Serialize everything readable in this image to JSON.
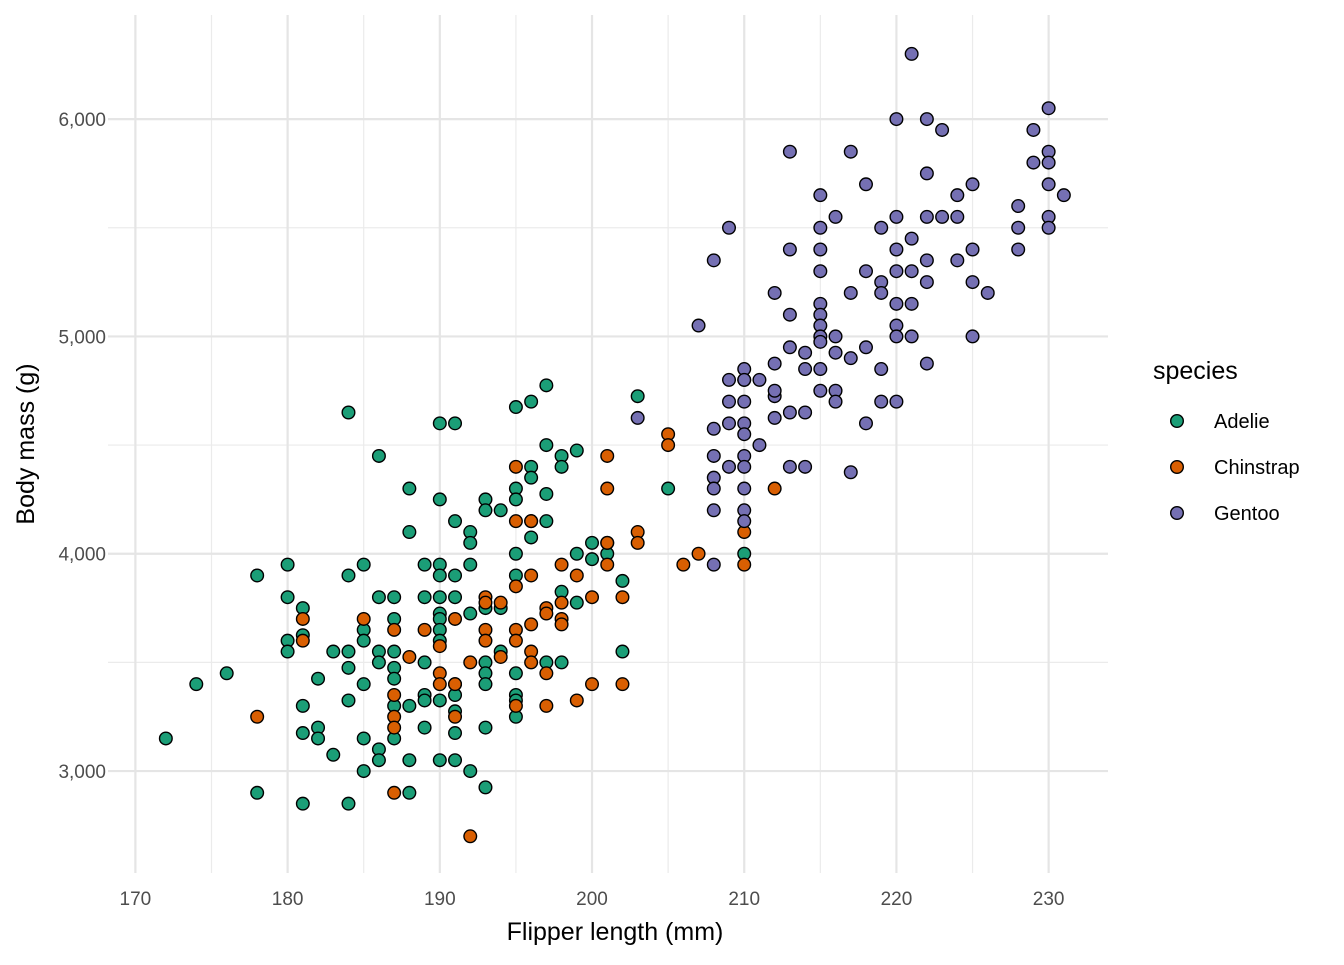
{
  "chart_data": {
    "type": "scatter",
    "title": "",
    "xlabel": "Flipper length (mm)",
    "ylabel": "Body mass (g)",
    "xlim": [
      168.2,
      233.9
    ],
    "ylim": [
      2531,
      6479
    ],
    "xticks": [
      170,
      180,
      190,
      200,
      210,
      220,
      230
    ],
    "xtick_labels": [
      "170",
      "180",
      "190",
      "200",
      "210",
      "220",
      "230"
    ],
    "yticks": [
      3000,
      4000,
      5000,
      6000
    ],
    "ytick_labels": [
      "3,000",
      "4,000",
      "5,000",
      "6,000"
    ],
    "grid": true,
    "legend": {
      "title": "species",
      "placement": "right"
    },
    "series": [
      {
        "name": "Adelie",
        "color": "#1B9E77",
        "points": [
          [
            172,
            3150
          ],
          [
            174,
            3400
          ],
          [
            176,
            3450
          ],
          [
            178,
            3900
          ],
          [
            178,
            2900
          ],
          [
            180,
            3950
          ],
          [
            180,
            3800
          ],
          [
            180,
            3600
          ],
          [
            180,
            3550
          ],
          [
            181,
            3750
          ],
          [
            181,
            3625
          ],
          [
            181,
            3300
          ],
          [
            181,
            3175
          ],
          [
            181,
            2850
          ],
          [
            182,
            3425
          ],
          [
            182,
            3200
          ],
          [
            182,
            3150
          ],
          [
            183,
            3550
          ],
          [
            183,
            3075
          ],
          [
            184,
            4650
          ],
          [
            184,
            3900
          ],
          [
            184,
            3550
          ],
          [
            184,
            3475
          ],
          [
            184,
            3325
          ],
          [
            184,
            2850
          ],
          [
            185,
            3950
          ],
          [
            185,
            3650
          ],
          [
            185,
            3600
          ],
          [
            185,
            3400
          ],
          [
            185,
            3150
          ],
          [
            185,
            3000
          ],
          [
            186,
            4450
          ],
          [
            186,
            3800
          ],
          [
            186,
            3550
          ],
          [
            186,
            3500
          ],
          [
            186,
            3100
          ],
          [
            186,
            3050
          ],
          [
            187,
            3800
          ],
          [
            187,
            3700
          ],
          [
            187,
            3550
          ],
          [
            187,
            3475
          ],
          [
            187,
            3425
          ],
          [
            187,
            3300
          ],
          [
            187,
            3150
          ],
          [
            188,
            4300
          ],
          [
            188,
            4100
          ],
          [
            188,
            3300
          ],
          [
            188,
            3050
          ],
          [
            188,
            2900
          ],
          [
            189,
            3950
          ],
          [
            189,
            3800
          ],
          [
            189,
            3500
          ],
          [
            189,
            3350
          ],
          [
            189,
            3325
          ],
          [
            189,
            3200
          ],
          [
            190,
            4600
          ],
          [
            190,
            4250
          ],
          [
            190,
            3950
          ],
          [
            190,
            3900
          ],
          [
            190,
            3800
          ],
          [
            190,
            3725
          ],
          [
            190,
            3700
          ],
          [
            190,
            3650
          ],
          [
            190,
            3600
          ],
          [
            190,
            3325
          ],
          [
            190,
            3050
          ],
          [
            191,
            4600
          ],
          [
            191,
            4150
          ],
          [
            191,
            3900
          ],
          [
            191,
            3800
          ],
          [
            191,
            3400
          ],
          [
            191,
            3350
          ],
          [
            191,
            3275
          ],
          [
            191,
            3175
          ],
          [
            191,
            3050
          ],
          [
            192,
            4100
          ],
          [
            192,
            4050
          ],
          [
            192,
            3950
          ],
          [
            192,
            3725
          ],
          [
            192,
            3000
          ],
          [
            193,
            4250
          ],
          [
            193,
            4200
          ],
          [
            193,
            3750
          ],
          [
            193,
            3500
          ],
          [
            193,
            3450
          ],
          [
            193,
            3400
          ],
          [
            193,
            3200
          ],
          [
            193,
            2925
          ],
          [
            194,
            4200
          ],
          [
            194,
            3750
          ],
          [
            194,
            3550
          ],
          [
            195,
            4675
          ],
          [
            195,
            4300
          ],
          [
            195,
            4250
          ],
          [
            195,
            4000
          ],
          [
            195,
            3900
          ],
          [
            195,
            3450
          ],
          [
            195,
            3350
          ],
          [
            195,
            3325
          ],
          [
            195,
            3250
          ],
          [
            196,
            4700
          ],
          [
            196,
            4400
          ],
          [
            196,
            4350
          ],
          [
            196,
            4150
          ],
          [
            196,
            4075
          ],
          [
            197,
            4775
          ],
          [
            197,
            4500
          ],
          [
            197,
            4275
          ],
          [
            197,
            4150
          ],
          [
            197,
            3500
          ],
          [
            198,
            4450
          ],
          [
            198,
            4400
          ],
          [
            198,
            3825
          ],
          [
            198,
            3500
          ],
          [
            199,
            4475
          ],
          [
            199,
            4000
          ],
          [
            199,
            3775
          ],
          [
            200,
            4050
          ],
          [
            200,
            3975
          ],
          [
            201,
            4000
          ],
          [
            201,
            4050
          ],
          [
            202,
            3875
          ],
          [
            202,
            3550
          ],
          [
            203,
            4725
          ],
          [
            205,
            4300
          ],
          [
            210,
            4000
          ]
        ]
      },
      {
        "name": "Chinstrap",
        "color": "#D95F02",
        "points": [
          [
            178,
            3250
          ],
          [
            181,
            3700
          ],
          [
            181,
            3600
          ],
          [
            185,
            3700
          ],
          [
            187,
            3650
          ],
          [
            187,
            3350
          ],
          [
            187,
            3250
          ],
          [
            187,
            3200
          ],
          [
            187,
            2900
          ],
          [
            188,
            3525
          ],
          [
            189,
            3650
          ],
          [
            190,
            3575
          ],
          [
            190,
            3450
          ],
          [
            190,
            3400
          ],
          [
            191,
            3700
          ],
          [
            191,
            3400
          ],
          [
            191,
            3250
          ],
          [
            192,
            3500
          ],
          [
            192,
            2700
          ],
          [
            193,
            3800
          ],
          [
            193,
            3775
          ],
          [
            193,
            3650
          ],
          [
            193,
            3600
          ],
          [
            194,
            3775
          ],
          [
            194,
            3525
          ],
          [
            195,
            4400
          ],
          [
            195,
            4150
          ],
          [
            195,
            3850
          ],
          [
            195,
            3650
          ],
          [
            195,
            3600
          ],
          [
            195,
            3300
          ],
          [
            196,
            4150
          ],
          [
            196,
            3900
          ],
          [
            196,
            3675
          ],
          [
            196,
            3550
          ],
          [
            196,
            3500
          ],
          [
            197,
            3750
          ],
          [
            197,
            3725
          ],
          [
            197,
            3450
          ],
          [
            197,
            3300
          ],
          [
            198,
            3950
          ],
          [
            198,
            3775
          ],
          [
            198,
            3700
          ],
          [
            198,
            3675
          ],
          [
            199,
            3900
          ],
          [
            199,
            3325
          ],
          [
            200,
            3800
          ],
          [
            200,
            3400
          ],
          [
            201,
            4450
          ],
          [
            201,
            4300
          ],
          [
            201,
            4050
          ],
          [
            201,
            3950
          ],
          [
            202,
            3800
          ],
          [
            202,
            3400
          ],
          [
            203,
            4100
          ],
          [
            203,
            4050
          ],
          [
            205,
            4550
          ],
          [
            205,
            4500
          ],
          [
            206,
            3950
          ],
          [
            207,
            4000
          ],
          [
            210,
            4800
          ],
          [
            210,
            4100
          ],
          [
            210,
            3950
          ],
          [
            212,
            4300
          ]
        ]
      },
      {
        "name": "Gentoo",
        "color": "#7570B3",
        "points": [
          [
            203,
            4625
          ],
          [
            207,
            5050
          ],
          [
            208,
            5350
          ],
          [
            208,
            4575
          ],
          [
            208,
            4450
          ],
          [
            208,
            4350
          ],
          [
            208,
            4300
          ],
          [
            208,
            4200
          ],
          [
            208,
            3950
          ],
          [
            209,
            5500
          ],
          [
            209,
            4800
          ],
          [
            209,
            4700
          ],
          [
            209,
            4600
          ],
          [
            209,
            4400
          ],
          [
            210,
            4850
          ],
          [
            210,
            4800
          ],
          [
            210,
            4700
          ],
          [
            210,
            4600
          ],
          [
            210,
            4550
          ],
          [
            210,
            4450
          ],
          [
            210,
            4400
          ],
          [
            210,
            4300
          ],
          [
            210,
            4200
          ],
          [
            210,
            4150
          ],
          [
            211,
            4800
          ],
          [
            211,
            4500
          ],
          [
            212,
            5200
          ],
          [
            212,
            4875
          ],
          [
            212,
            4725
          ],
          [
            212,
            4750
          ],
          [
            212,
            4625
          ],
          [
            213,
            5850
          ],
          [
            213,
            5400
          ],
          [
            213,
            5100
          ],
          [
            213,
            4950
          ],
          [
            213,
            4650
          ],
          [
            213,
            4400
          ],
          [
            214,
            4925
          ],
          [
            214,
            4850
          ],
          [
            214,
            4650
          ],
          [
            214,
            4400
          ],
          [
            215,
            5650
          ],
          [
            215,
            5500
          ],
          [
            215,
            5400
          ],
          [
            215,
            5300
          ],
          [
            215,
            5150
          ],
          [
            215,
            5100
          ],
          [
            215,
            5050
          ],
          [
            215,
            5000
          ],
          [
            215,
            4975
          ],
          [
            215,
            4850
          ],
          [
            215,
            4750
          ],
          [
            216,
            5550
          ],
          [
            216,
            5000
          ],
          [
            216,
            4925
          ],
          [
            216,
            4750
          ],
          [
            216,
            4700
          ],
          [
            217,
            5850
          ],
          [
            217,
            5200
          ],
          [
            217,
            4900
          ],
          [
            217,
            4375
          ],
          [
            218,
            5700
          ],
          [
            218,
            5300
          ],
          [
            218,
            4950
          ],
          [
            218,
            4600
          ],
          [
            219,
            5500
          ],
          [
            219,
            5250
          ],
          [
            219,
            5200
          ],
          [
            219,
            4850
          ],
          [
            219,
            4700
          ],
          [
            220,
            6000
          ],
          [
            220,
            5550
          ],
          [
            220,
            5400
          ],
          [
            220,
            5300
          ],
          [
            220,
            5150
          ],
          [
            220,
            5050
          ],
          [
            220,
            5000
          ],
          [
            220,
            4700
          ],
          [
            221,
            6300
          ],
          [
            221,
            5450
          ],
          [
            221,
            5300
          ],
          [
            221,
            5150
          ],
          [
            221,
            5000
          ],
          [
            222,
            6000
          ],
          [
            222,
            5750
          ],
          [
            222,
            5550
          ],
          [
            222,
            5350
          ],
          [
            222,
            5250
          ],
          [
            222,
            4875
          ],
          [
            223,
            5950
          ],
          [
            223,
            5550
          ],
          [
            224,
            5650
          ],
          [
            224,
            5550
          ],
          [
            224,
            5350
          ],
          [
            225,
            5700
          ],
          [
            225,
            5400
          ],
          [
            225,
            5250
          ],
          [
            225,
            5000
          ],
          [
            226,
            5200
          ],
          [
            228,
            5600
          ],
          [
            228,
            5500
          ],
          [
            228,
            5400
          ],
          [
            229,
            5950
          ],
          [
            229,
            5800
          ],
          [
            230,
            6050
          ],
          [
            230,
            5850
          ],
          [
            230,
            5800
          ],
          [
            230,
            5700
          ],
          [
            230,
            5550
          ],
          [
            230,
            5500
          ],
          [
            231,
            5650
          ]
        ]
      }
    ]
  }
}
